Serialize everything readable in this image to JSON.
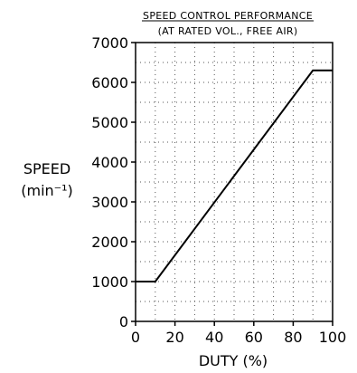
{
  "chart_data": {
    "type": "line",
    "title": "SPEED CONTROL PERFORMANCE",
    "subtitle": "(AT RATED VOL., FREE AIR)",
    "xlabel": "DUTY (%)",
    "ylabel_line1": "SPEED",
    "ylabel_line2": "(min⁻¹)",
    "xlim": [
      0,
      100
    ],
    "ylim": [
      0,
      7000
    ],
    "x_ticks": [
      0,
      20,
      40,
      60,
      80,
      100
    ],
    "y_ticks": [
      0,
      1000,
      2000,
      3000,
      4000,
      5000,
      6000,
      7000
    ],
    "grid": true,
    "series": [
      {
        "x": [
          0,
          10,
          90,
          100
        ],
        "y": [
          1000,
          1000,
          6300,
          6300
        ]
      }
    ]
  }
}
